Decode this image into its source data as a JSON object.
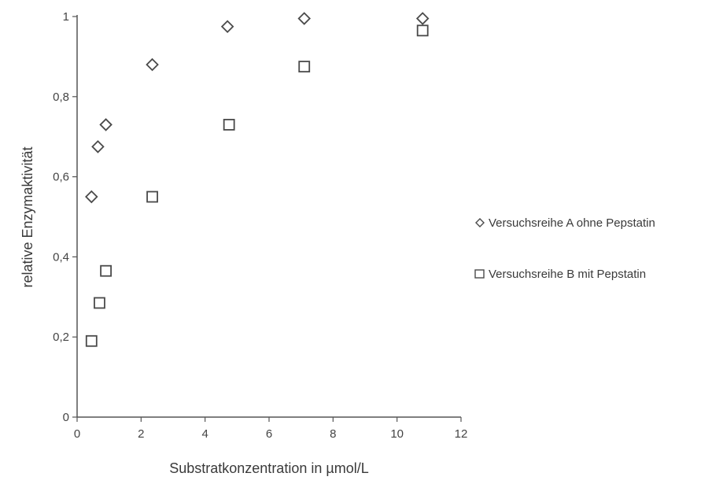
{
  "chart_data": {
    "type": "scatter",
    "xlabel": "Substratkonzentration  in µmol/L",
    "ylabel": "relative  Enzymaktivität",
    "xlim": [
      0,
      12
    ],
    "ylim": [
      0,
      1
    ],
    "x_ticks": [
      "0",
      "2",
      "4",
      "6",
      "8",
      "10",
      "12"
    ],
    "y_ticks": [
      "0",
      "0,2",
      "0,4",
      "0,6",
      "0,8",
      "1"
    ],
    "grid": false,
    "legend_position": "right",
    "series": [
      {
        "name": "Versuchsreihe A ohne Pepstatin",
        "marker": "diamond",
        "color": "#4a4a4a",
        "points": [
          {
            "x": 0.45,
            "y": 0.55
          },
          {
            "x": 0.65,
            "y": 0.675
          },
          {
            "x": 0.9,
            "y": 0.73
          },
          {
            "x": 2.35,
            "y": 0.88
          },
          {
            "x": 4.7,
            "y": 0.975
          },
          {
            "x": 7.1,
            "y": 0.995
          },
          {
            "x": 10.8,
            "y": 0.995
          }
        ]
      },
      {
        "name": "Versuchsreihe B mit Pepstatin",
        "marker": "square",
        "color": "#4a4a4a",
        "points": [
          {
            "x": 0.45,
            "y": 0.19
          },
          {
            "x": 0.7,
            "y": 0.285
          },
          {
            "x": 0.9,
            "y": 0.365
          },
          {
            "x": 2.35,
            "y": 0.55
          },
          {
            "x": 4.75,
            "y": 0.73
          },
          {
            "x": 7.1,
            "y": 0.875
          },
          {
            "x": 10.8,
            "y": 0.965
          }
        ]
      }
    ]
  }
}
